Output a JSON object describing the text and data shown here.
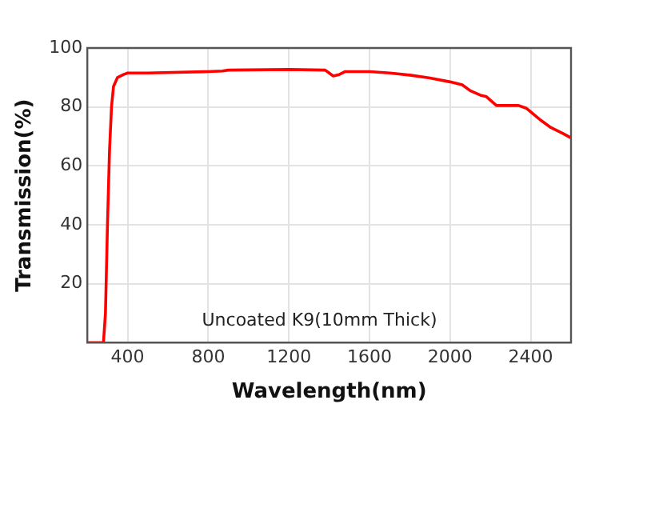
{
  "chart_data": {
    "type": "line",
    "xlabel": "Wavelength(nm)",
    "ylabel": "Transmission(%)",
    "annotations": [
      "Uncoated K9(10mm Thick)"
    ],
    "x": [
      200,
      280,
      290,
      300,
      310,
      320,
      330,
      350,
      380,
      400,
      500,
      800,
      870,
      900,
      1200,
      1380,
      1400,
      1420,
      1450,
      1480,
      1600,
      1700,
      1800,
      1900,
      2000,
      2060,
      2100,
      2150,
      2180,
      2230,
      2280,
      2340,
      2380,
      2450,
      2500,
      2560,
      2600
    ],
    "series": [
      {
        "color": "#ff0000",
        "values": [
          0,
          0,
          10,
          40,
          65,
          80,
          87,
          90,
          91,
          91.5,
          91.5,
          92,
          92.2,
          92.5,
          92.7,
          92.5,
          91.5,
          90.5,
          91,
          92,
          92,
          91.5,
          90.8,
          89.8,
          88.5,
          87.5,
          85.5,
          84,
          83.5,
          80.5,
          80.5,
          80.5,
          79.5,
          75.5,
          73,
          71,
          69.5
        ]
      }
    ],
    "xlim": [
      200,
      2600
    ],
    "xticks": [
      400,
      800,
      1200,
      1600,
      2000,
      2400
    ],
    "ylim": [
      0,
      100
    ],
    "yticks": [
      {
        "value": 0,
        "label": null
      },
      20,
      40,
      60,
      80,
      100
    ],
    "grid": true,
    "legend": false,
    "marker": "none",
    "line_style": "solid"
  }
}
